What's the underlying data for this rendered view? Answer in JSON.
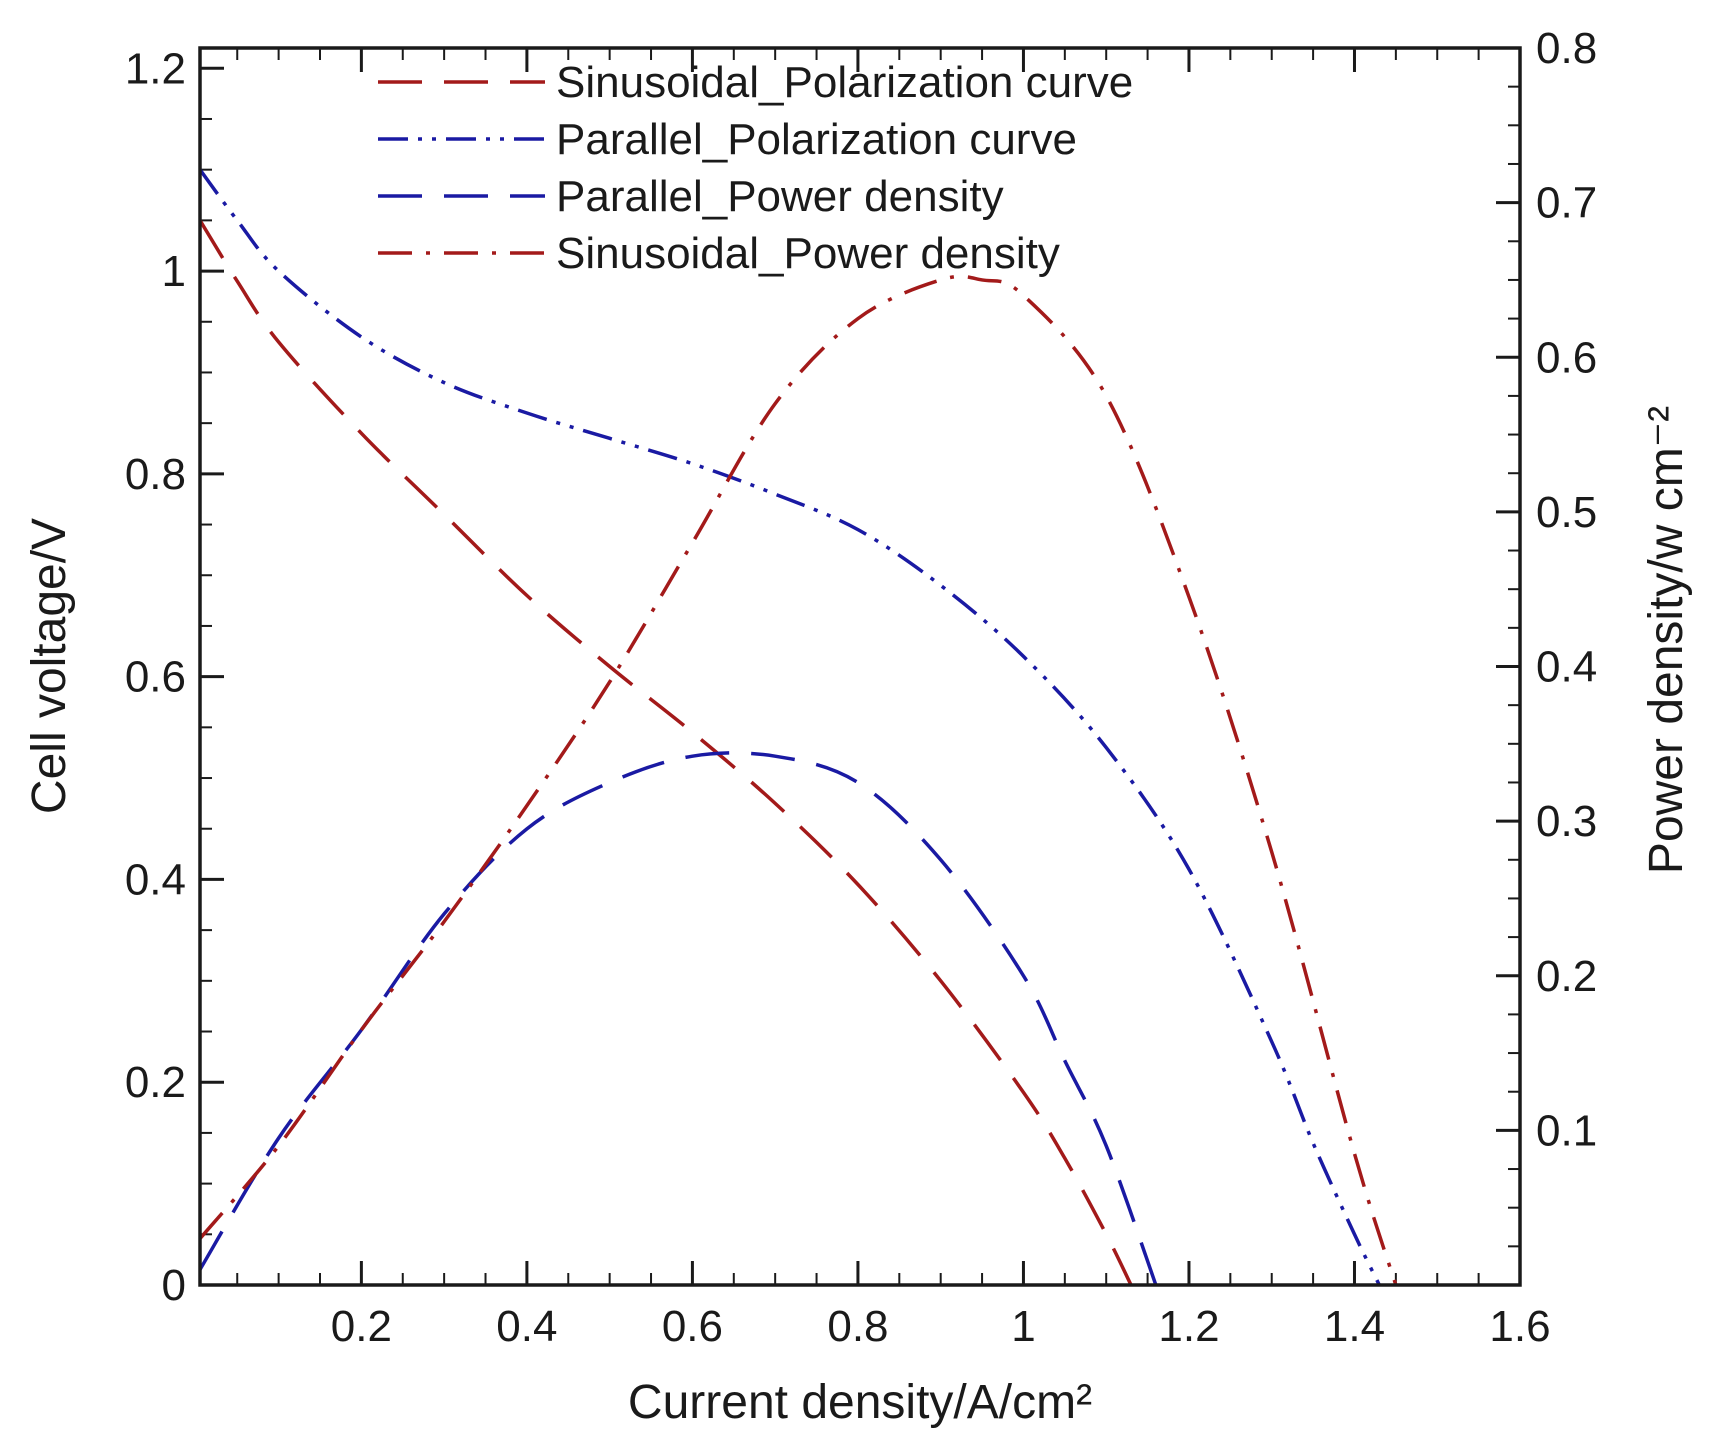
{
  "chart_data": {
    "type": "line",
    "xlabel": "Current density/A/cm²",
    "ylabel_left": "Cell voltage/V",
    "ylabel_right": "Power density/w cm⁻²",
    "xlim": [
      0.005,
      1.6
    ],
    "ylim_left": [
      0,
      1.22
    ],
    "ylim_right": [
      0,
      0.8
    ],
    "x_ticks": [
      {
        "value": 0.2,
        "label": "0.2"
      },
      {
        "value": 0.4,
        "label": "0.4"
      },
      {
        "value": 0.6,
        "label": "0.6"
      },
      {
        "value": 0.8,
        "label": "0.8"
      },
      {
        "value": 1.0,
        "label": "1"
      },
      {
        "value": 1.2,
        "label": "1.2"
      },
      {
        "value": 1.4,
        "label": "1.4"
      },
      {
        "value": 1.6,
        "label": "1.6"
      }
    ],
    "y_ticks_left": [
      {
        "value": 0,
        "label": "0"
      },
      {
        "value": 0.2,
        "label": "0.2"
      },
      {
        "value": 0.4,
        "label": "0.4"
      },
      {
        "value": 0.6,
        "label": "0.6"
      },
      {
        "value": 0.8,
        "label": "0.8"
      },
      {
        "value": 1.0,
        "label": "1"
      },
      {
        "value": 1.2,
        "label": "1.2"
      }
    ],
    "y_ticks_right": [
      {
        "value": 0.1,
        "label": "0.1"
      },
      {
        "value": 0.2,
        "label": "0.2"
      },
      {
        "value": 0.3,
        "label": "0.3"
      },
      {
        "value": 0.4,
        "label": "0.4"
      },
      {
        "value": 0.5,
        "label": "0.5"
      },
      {
        "value": 0.6,
        "label": "0.6"
      },
      {
        "value": 0.7,
        "label": "0.7"
      },
      {
        "value": 0.8,
        "label": "0.8"
      }
    ],
    "legend_position": "top-center",
    "series": [
      {
        "name": "Sinusoidal_Polarization curve",
        "axis": "left",
        "color": "#a31a1a",
        "style": "long-dash",
        "x": [
          0.005,
          0.05,
          0.1,
          0.2,
          0.3,
          0.4,
          0.5,
          0.6,
          0.7,
          0.8,
          0.9,
          1.0,
          1.05,
          1.1,
          1.13
        ],
        "y": [
          1.05,
          0.99,
          0.93,
          0.84,
          0.76,
          0.68,
          0.61,
          0.545,
          0.475,
          0.395,
          0.3,
          0.19,
          0.125,
          0.05,
          0.0
        ]
      },
      {
        "name": "Parallel_Polarization curve",
        "axis": "left",
        "color": "#1a1aa3",
        "style": "dash-dot-dot",
        "x": [
          0.005,
          0.05,
          0.1,
          0.2,
          0.3,
          0.4,
          0.5,
          0.6,
          0.7,
          0.8,
          0.9,
          1.0,
          1.1,
          1.2,
          1.3,
          1.35,
          1.4,
          1.43
        ],
        "y": [
          1.1,
          1.05,
          1.0,
          0.935,
          0.89,
          0.86,
          0.835,
          0.81,
          0.78,
          0.745,
          0.69,
          0.62,
          0.53,
          0.41,
          0.24,
          0.14,
          0.05,
          0.0
        ]
      },
      {
        "name": "Parallel_Power density",
        "axis": "right",
        "color": "#1a1aa3",
        "style": "long-dash",
        "x": [
          0.005,
          0.1,
          0.2,
          0.3,
          0.4,
          0.5,
          0.6,
          0.7,
          0.8,
          0.9,
          1.0,
          1.05,
          1.1,
          1.16
        ],
        "y": [
          0.01,
          0.095,
          0.165,
          0.24,
          0.295,
          0.325,
          0.342,
          0.342,
          0.325,
          0.275,
          0.2,
          0.145,
          0.09,
          0.0
        ]
      },
      {
        "name": "Sinusoidal_Power density",
        "axis": "right",
        "color": "#a31a1a",
        "style": "dash-dot",
        "x": [
          0.005,
          0.1,
          0.2,
          0.3,
          0.4,
          0.5,
          0.6,
          0.7,
          0.8,
          0.9,
          0.95,
          1.0,
          1.1,
          1.2,
          1.3,
          1.4,
          1.45
        ],
        "y": [
          0.03,
          0.09,
          0.165,
          0.235,
          0.31,
          0.39,
          0.48,
          0.57,
          0.625,
          0.65,
          0.65,
          0.64,
          0.575,
          0.445,
          0.28,
          0.085,
          0.0
        ]
      }
    ]
  }
}
